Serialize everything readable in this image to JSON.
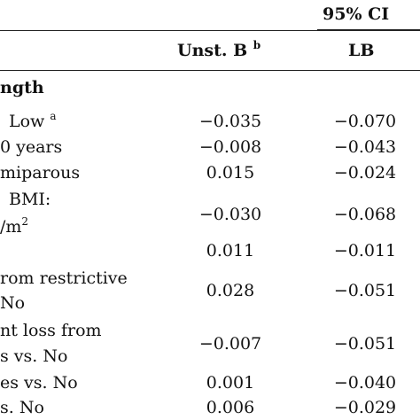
{
  "header": {
    "ci_label": "95% CI",
    "col_b_label": "Unst. B",
    "col_b_sup": "b",
    "col_lb_label": "LB"
  },
  "section_title": "ngth",
  "rows": [
    {
      "label_lines": [
        "Low"
      ],
      "label_sup": "a",
      "b": "−0.035",
      "lb": "−0.070"
    },
    {
      "label_lines": [
        "0 years"
      ],
      "b": "−0.008",
      "lb": "−0.043"
    },
    {
      "label_lines": [
        "miparous"
      ],
      "b": "0.015",
      "lb": "−0.024"
    },
    {
      "label_lines": [
        "BMI:",
        "/m"
      ],
      "label_sup": "2",
      "b": "−0.030",
      "lb": "−0.068"
    },
    {
      "label_lines": [
        ""
      ],
      "b": "0.011",
      "lb": "−0.011"
    },
    {
      "label_lines": [
        "rom restrictive",
        "No"
      ],
      "b": "0.028",
      "lb": "−0.051"
    },
    {
      "label_lines": [
        "nt loss from",
        "s vs. No"
      ],
      "b": "−0.007",
      "lb": "−0.051"
    },
    {
      "label_lines": [
        "es vs. No"
      ],
      "b": "0.001",
      "lb": "−0.040"
    },
    {
      "label_lines": [
        "s. No"
      ],
      "b": "0.006",
      "lb": "−0.029"
    }
  ]
}
